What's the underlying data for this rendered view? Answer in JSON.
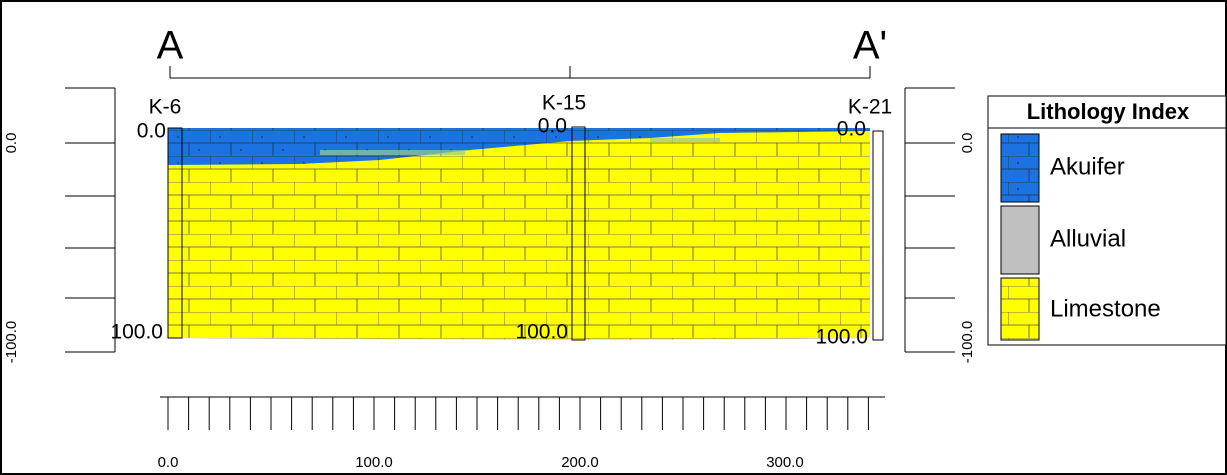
{
  "section_ends": {
    "start": "A",
    "end": "A'"
  },
  "wells": [
    {
      "name": "K-6",
      "top_label": "0.0",
      "bottom_label": "100.0"
    },
    {
      "name": "K-15",
      "top_label": "0.0",
      "bottom_label": "100.0"
    },
    {
      "name": "K-21",
      "top_label": "0.0",
      "bottom_label": "100.0"
    }
  ],
  "left_axis": {
    "tick_labels": [
      "0.0",
      "-100.0"
    ]
  },
  "right_axis": {
    "tick_labels": [
      "0.0",
      "-100.0"
    ]
  },
  "bottom_axis": {
    "tick_labels": [
      "0.0",
      "100.0",
      "200.0",
      "300.0"
    ]
  },
  "legend": {
    "title": "Lithology Index",
    "items": [
      "Akuifer",
      "Alluvial",
      "Limestone"
    ]
  }
}
